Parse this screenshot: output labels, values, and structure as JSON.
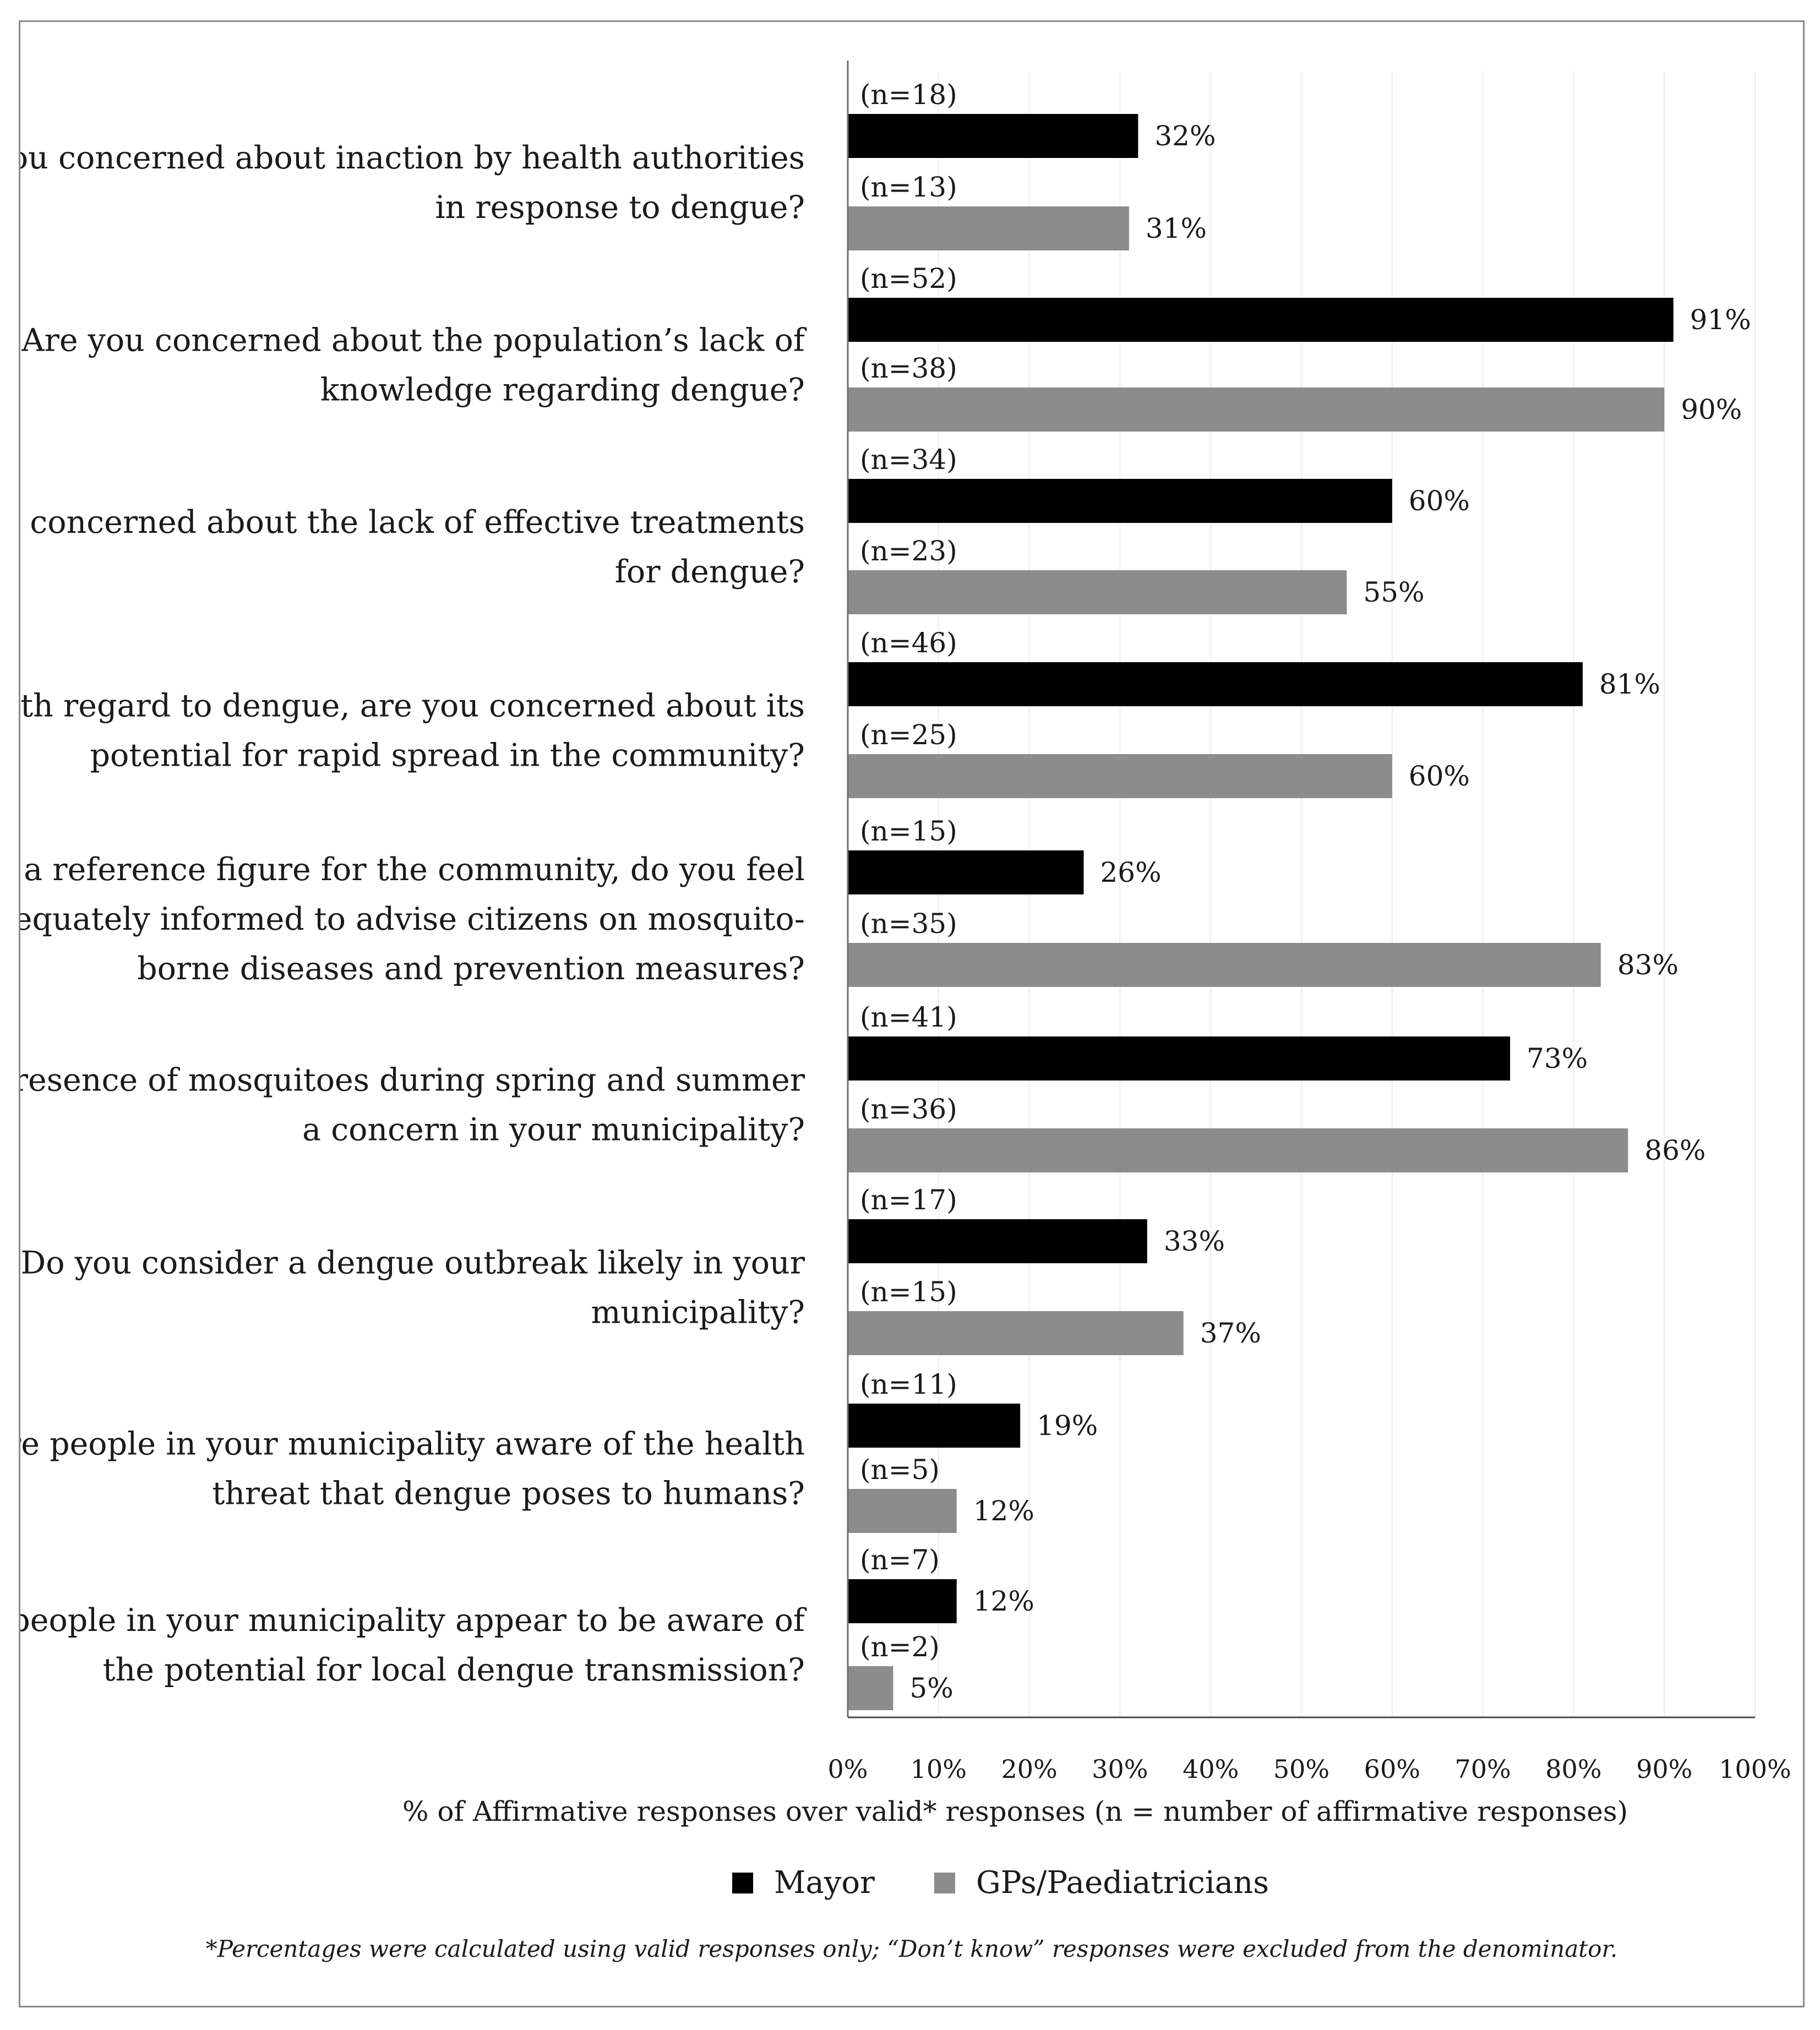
{
  "chart_data": {
    "type": "bar",
    "orientation": "horizontal",
    "categories": [
      [
        "Are you concerned about inaction by health authorities",
        "in response to dengue?"
      ],
      [
        "Are you concerned about the population’s lack of",
        "knowledge regarding dengue?"
      ],
      [
        "Are you concerned about the lack of effective treatments",
        "for dengue?"
      ],
      [
        "With regard to dengue, are you concerned about its",
        "potential for rapid spread in the community?"
      ],
      [
        "As a reference figure for the community, do you feel",
        "adequately informed to advise citizens on mosquito-",
        "borne diseases and prevention measures?"
      ],
      [
        "Is the presence of mosquitoes during spring and summer",
        "a concern in your municipality?"
      ],
      [
        "Do you consider a dengue outbreak likely in your",
        "municipality?"
      ],
      [
        "Are people in your municipality aware of the health",
        "threat that dengue poses to humans?"
      ],
      [
        "Do people in your municipality appear to be aware of",
        "the potential for local dengue transmission?"
      ]
    ],
    "series": [
      {
        "name": "Mayor",
        "color": "#000000",
        "values": [
          32,
          91,
          60,
          81,
          26,
          73,
          33,
          19,
          12
        ],
        "value_labels": [
          "32%",
          "91%",
          "60%",
          "81%",
          "26%",
          "73%",
          "33%",
          "19%",
          "12%"
        ],
        "n_labels": [
          "(n=18)",
          "(n=52)",
          "(n=34)",
          "(n=46)",
          "(n=15)",
          "(n=41)",
          "(n=17)",
          "(n=11)",
          "(n=7)"
        ]
      },
      {
        "name": "GPs/Paediatricians",
        "color": "#8c8c8c",
        "values": [
          31,
          90,
          55,
          60,
          83,
          86,
          37,
          12,
          5
        ],
        "value_labels": [
          "31%",
          "90%",
          "55%",
          "60%",
          "83%",
          "86%",
          "37%",
          "12%",
          "5%"
        ],
        "n_labels": [
          "(n=13)",
          "(n=38)",
          "(n=23)",
          "(n=25)",
          "(n=35)",
          "(n=36)",
          "(n=15)",
          "(n=5)",
          "(n=2)"
        ]
      }
    ],
    "xlim": [
      0,
      100
    ],
    "x_ticks": [
      "0%",
      "10%",
      "20%",
      "30%",
      "40%",
      "50%",
      "60%",
      "70%",
      "80%",
      "90%",
      "100%"
    ],
    "xlabel": "% of Affirmative responses over valid* responses (n = number of affirmative responses)",
    "grid": true,
    "legend_position": "bottom",
    "footnote": "*Percentages were calculated using valid responses only; “Don’t know” responses were excluded from the denominator."
  }
}
